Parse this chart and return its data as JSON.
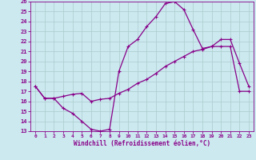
{
  "xlabel": "Windchill (Refroidissement éolien,°C)",
  "xlim": [
    -0.5,
    23.5
  ],
  "ylim": [
    13,
    26
  ],
  "yticks": [
    13,
    14,
    15,
    16,
    17,
    18,
    19,
    20,
    21,
    22,
    23,
    24,
    25,
    26
  ],
  "xticks": [
    0,
    1,
    2,
    3,
    4,
    5,
    6,
    7,
    8,
    9,
    10,
    11,
    12,
    13,
    14,
    15,
    16,
    17,
    18,
    19,
    20,
    21,
    22,
    23
  ],
  "bg_color": "#cce9f0",
  "line_color": "#880088",
  "grid_color": "#aacccc",
  "curve1_x": [
    0,
    1,
    2,
    3,
    4,
    5,
    6,
    7,
    8,
    9,
    10,
    11,
    12,
    13,
    14,
    15,
    16,
    17,
    18,
    19,
    20,
    21,
    22,
    23
  ],
  "curve1_y": [
    17.5,
    16.3,
    16.3,
    15.3,
    14.8,
    14.0,
    13.2,
    13.0,
    13.2,
    19.0,
    21.5,
    22.2,
    23.5,
    24.5,
    25.8,
    26.0,
    25.2,
    23.2,
    21.3,
    21.5,
    22.2,
    22.2,
    19.8,
    17.5
  ],
  "curve2_x": [
    0,
    1,
    2,
    3,
    4,
    5,
    6,
    7,
    8,
    9,
    10,
    11,
    12,
    13,
    14,
    15,
    16,
    17,
    18,
    19,
    20,
    21,
    22,
    23
  ],
  "curve2_y": [
    17.5,
    16.3,
    16.3,
    16.5,
    16.7,
    16.8,
    16.0,
    16.2,
    16.3,
    16.8,
    17.2,
    17.8,
    18.2,
    18.8,
    19.5,
    20.0,
    20.5,
    21.0,
    21.2,
    21.5,
    21.5,
    21.5,
    17.0,
    17.0
  ]
}
